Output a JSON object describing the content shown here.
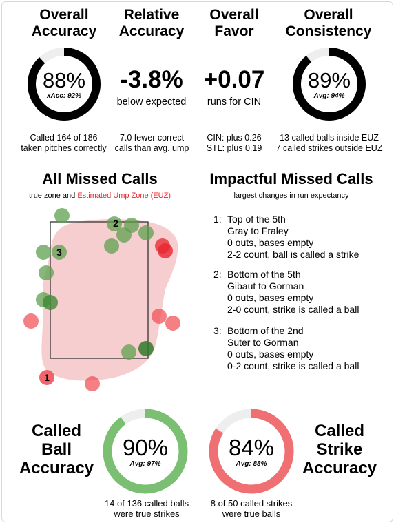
{
  "top": {
    "overall_accuracy": {
      "title1": "Overall",
      "title2": "Accuracy",
      "value": "88%",
      "sub": "xAcc: 92%",
      "fraction": 0.88,
      "desc1": "Called 164 of 186",
      "desc2": "taken pitches correctly"
    },
    "relative_accuracy": {
      "title1": "Relative",
      "title2": "Accuracy",
      "value": "-3.8%",
      "label": "below expected",
      "desc1": "7.0 fewer correct",
      "desc2": "calls than avg. ump"
    },
    "overall_favor": {
      "title1": "Overall",
      "title2": "Favor",
      "value": "+0.07",
      "label": "runs for CIN",
      "desc1": "CIN: plus 0.26",
      "desc2": "STL: plus 0.19"
    },
    "overall_consistency": {
      "title1": "Overall",
      "title2": "Consistency",
      "value": "89%",
      "sub": "Avg: 94%",
      "fraction": 0.89,
      "desc1": "13 called balls inside EUZ",
      "desc2": "7 called strikes outside EUZ"
    }
  },
  "missed": {
    "title": "All Missed Calls",
    "sub_black": "true zone and",
    "sub_red": "Estimated Ump Zone (EUZ)",
    "labels": [
      "1",
      "2",
      "3"
    ]
  },
  "impactful": {
    "title": "Impactful Missed Calls",
    "subtitle": "largest changes in run expectancy",
    "items": [
      {
        "num": "1:",
        "l1": "Top of the 5th",
        "l2": "Gray to Fraley",
        "l3": "0 outs, bases empty",
        "l4": "2-2 count, ball is called a strike"
      },
      {
        "num": "2:",
        "l1": "Bottom of the 5th",
        "l2": "Gibaut to Gorman",
        "l3": "0 outs, bases empty",
        "l4": "2-0 count, strike is called a ball"
      },
      {
        "num": "3:",
        "l1": "Bottom of the 2nd",
        "l2": "Suter to Gorman",
        "l3": "0 outs, bases empty",
        "l4": "0-2 count, strike is called a ball"
      }
    ]
  },
  "bottom": {
    "ball": {
      "t1": "Called",
      "t2": "Ball",
      "t3": "Accuracy",
      "value": "90%",
      "sub": "Avg: 97%",
      "fraction": 0.9,
      "desc1": "14 of 136 called balls",
      "desc2": "were true strikes",
      "color": "#7bbf72"
    },
    "strike": {
      "t1": "Called",
      "t2": "Strike",
      "t3": "Accuracy",
      "value": "84%",
      "sub": "Avg: 88%",
      "fraction": 0.84,
      "desc1": "8 of 50 called strikes",
      "desc2": "were true balls",
      "color": "#ef6f73"
    }
  },
  "colors": {
    "accent_red": "#e8262f",
    "ring_dark": "#000000",
    "ring_green": "#7bbf72",
    "ring_red": "#ef6f73",
    "euz_fill": "#f6c9cb"
  }
}
